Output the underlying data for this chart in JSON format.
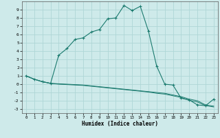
{
  "xlabel": "Humidex (Indice chaleur)",
  "bg_color": "#ceeaea",
  "grid_color": "#aed6d6",
  "line_color": "#1a7a6e",
  "xlim": [
    -0.5,
    23.5
  ],
  "ylim": [
    -3.5,
    10.0
  ],
  "xticks": [
    0,
    1,
    2,
    3,
    4,
    5,
    6,
    7,
    8,
    9,
    10,
    11,
    12,
    13,
    14,
    15,
    16,
    17,
    18,
    19,
    20,
    21,
    22,
    23
  ],
  "yticks": [
    -3,
    -2,
    -1,
    0,
    1,
    2,
    3,
    4,
    5,
    6,
    7,
    8,
    9
  ],
  "curve1_x": [
    0,
    1,
    2,
    3,
    4,
    5,
    6,
    7,
    8,
    9,
    10,
    11,
    12,
    13,
    14,
    15,
    16,
    17,
    18,
    19,
    20,
    21,
    22,
    23
  ],
  "curve1_y": [
    1.0,
    0.6,
    0.3,
    0.1,
    3.5,
    4.3,
    5.4,
    5.6,
    6.3,
    6.6,
    7.9,
    8.0,
    9.5,
    8.9,
    9.4,
    6.4,
    2.2,
    0.0,
    -0.1,
    -1.7,
    -1.9,
    -2.5,
    -2.6,
    -1.8
  ],
  "curve2_x": [
    0,
    1,
    2,
    3,
    4,
    5,
    6,
    7,
    8,
    9,
    10,
    11,
    12,
    13,
    14,
    15,
    16,
    17,
    18,
    19,
    20,
    21,
    22,
    23
  ],
  "curve2_y": [
    1.0,
    0.6,
    0.3,
    0.1,
    0.05,
    0.0,
    -0.05,
    -0.1,
    -0.2,
    -0.3,
    -0.4,
    -0.5,
    -0.6,
    -0.7,
    -0.8,
    -0.9,
    -1.0,
    -1.1,
    -1.3,
    -1.5,
    -1.8,
    -2.0,
    -2.5,
    -2.65
  ],
  "curve3_x": [
    0,
    1,
    2,
    3,
    4,
    5,
    6,
    7,
    8,
    9,
    10,
    11,
    12,
    13,
    14,
    15,
    16,
    17,
    18,
    19,
    20,
    21,
    22,
    23
  ],
  "curve3_y": [
    1.0,
    0.6,
    0.3,
    0.1,
    0.0,
    -0.05,
    -0.1,
    -0.15,
    -0.25,
    -0.35,
    -0.45,
    -0.55,
    -0.65,
    -0.75,
    -0.85,
    -0.95,
    -1.1,
    -1.2,
    -1.4,
    -1.6,
    -1.95,
    -2.15,
    -2.6,
    -2.75
  ]
}
